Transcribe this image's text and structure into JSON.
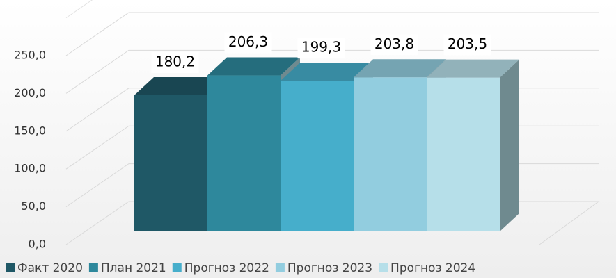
{
  "chart_data": {
    "type": "bar3d",
    "series": [
      {
        "name": "Факт 2020",
        "color": "#1f5866",
        "values": [
          180.2
        ],
        "value_labels": [
          "180,2"
        ]
      },
      {
        "name": "План 2021",
        "color": "#2e889c",
        "values": [
          206.3
        ],
        "value_labels": [
          "206,3"
        ]
      },
      {
        "name": "Прогноз 2022",
        "color": "#46aecb",
        "values": [
          199.3
        ],
        "value_labels": [
          "199,3"
        ]
      },
      {
        "name": "Прогноз 2023",
        "color": "#92cddf",
        "values": [
          203.8
        ],
        "value_labels": [
          "203,8"
        ]
      },
      {
        "name": "Прогноз 2024",
        "color": "#b6dfe9",
        "values": [
          203.5
        ],
        "value_labels": [
          "203,5"
        ]
      }
    ],
    "ylim": [
      0,
      250
    ],
    "yticks": [
      {
        "value": 0,
        "label": "0,0"
      },
      {
        "value": 50,
        "label": "50,0"
      },
      {
        "value": 100,
        "label": "100,0"
      },
      {
        "value": 150,
        "label": "150,0"
      },
      {
        "value": 200,
        "label": "200,0"
      },
      {
        "value": 250,
        "label": "250,0"
      }
    ],
    "grid": true
  }
}
